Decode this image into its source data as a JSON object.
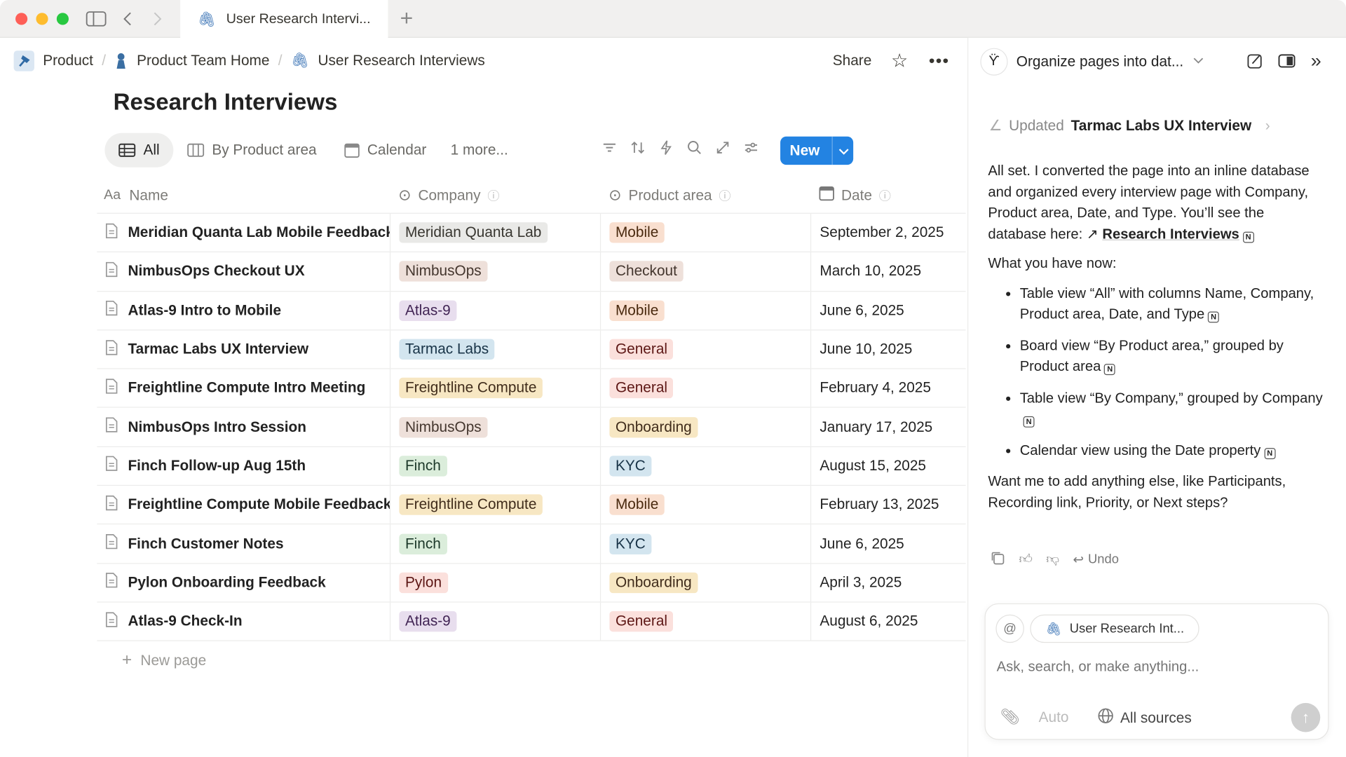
{
  "browser": {
    "tab_title": "User Research Intervi...",
    "new_tab": "+"
  },
  "breadcrumb": [
    {
      "label": "Product",
      "icon": "hammer-icon"
    },
    {
      "label": "Product Team Home",
      "icon": "person-icon"
    },
    {
      "label": "User Research Interviews",
      "icon": "paperclip-icon"
    }
  ],
  "topbar": {
    "share": "Share"
  },
  "page": {
    "title": "Research Interviews"
  },
  "views": [
    {
      "label": "All",
      "icon": "table-icon",
      "active": true
    },
    {
      "label": "By Product area",
      "icon": "board-icon"
    },
    {
      "label": "Calendar",
      "icon": "calendar-icon"
    },
    {
      "label": "1 more..."
    }
  ],
  "toolbar": {
    "new_label": "New"
  },
  "table": {
    "columns": [
      {
        "label": "Name",
        "icon": "text-icon"
      },
      {
        "label": "Company",
        "icon": "select-icon"
      },
      {
        "label": "Product area",
        "icon": "select-icon"
      },
      {
        "label": "Date",
        "icon": "calendar-icon"
      }
    ],
    "rows": [
      {
        "name": "Meridian Quanta Lab Mobile Feedback",
        "company": "Meridian Quanta Lab",
        "company_color": "gray",
        "area": "Mobile",
        "area_color": "orange",
        "date": "September 2, 2025"
      },
      {
        "name": "NimbusOps Checkout UX",
        "company": "NimbusOps",
        "company_color": "brown",
        "area": "Checkout",
        "area_color": "brown",
        "date": "March 10, 2025"
      },
      {
        "name": "Atlas-9 Intro to Mobile",
        "company": "Atlas-9",
        "company_color": "purple",
        "area": "Mobile",
        "area_color": "orange",
        "date": "June 6, 2025"
      },
      {
        "name": "Tarmac Labs UX Interview",
        "company": "Tarmac Labs",
        "company_color": "blue",
        "area": "General",
        "area_color": "red",
        "date": "June 10, 2025"
      },
      {
        "name": "Freightline Compute Intro Meeting",
        "company": "Freightline Compute",
        "company_color": "yellow",
        "area": "General",
        "area_color": "red",
        "date": "February 4, 2025"
      },
      {
        "name": "NimbusOps Intro Session",
        "company": "NimbusOps",
        "company_color": "brown",
        "area": "Onboarding",
        "area_color": "yellow",
        "date": "January 17, 2025"
      },
      {
        "name": "Finch Follow-up Aug 15th",
        "company": "Finch",
        "company_color": "green",
        "area": "KYC",
        "area_color": "blue",
        "date": "August 15, 2025"
      },
      {
        "name": "Freightline Compute Mobile Feedback",
        "company": "Freightline Compute",
        "company_color": "yellow",
        "area": "Mobile",
        "area_color": "orange",
        "date": "February 13, 2025"
      },
      {
        "name": "Finch Customer Notes",
        "company": "Finch",
        "company_color": "green",
        "area": "KYC",
        "area_color": "blue",
        "date": "June 6, 2025"
      },
      {
        "name": "Pylon Onboarding Feedback",
        "company": "Pylon",
        "company_color": "red",
        "area": "Onboarding",
        "area_color": "yellow",
        "date": "April 3, 2025"
      },
      {
        "name": "Atlas-9 Check-In",
        "company": "Atlas-9",
        "company_color": "purple",
        "area": "General",
        "area_color": "red",
        "date": "August 6, 2025"
      }
    ],
    "new_page": "New page"
  },
  "tag_colors": {
    "gray": {
      "bg": "#e9e9e7",
      "fg": "#37352f"
    },
    "brown": {
      "bg": "#eee0da",
      "fg": "#44362e"
    },
    "purple": {
      "bg": "#e8deee",
      "fg": "#412454"
    },
    "blue": {
      "bg": "#d3e5ef",
      "fg": "#183347"
    },
    "yellow": {
      "bg": "#f7e7c3",
      "fg": "#402c1b"
    },
    "orange": {
      "bg": "#f9dfcf",
      "fg": "#49290e"
    },
    "red": {
      "bg": "#fbe0dc",
      "fg": "#5d1715"
    },
    "green": {
      "bg": "#dbeddb",
      "fg": "#1c3829"
    }
  },
  "accent": "#2383e2",
  "chat": {
    "title": "Organize pages into dat...",
    "updated_label": "Updated",
    "updated_page": "Tarmac Labs UX Interview",
    "intro": "All set. I converted the page into an inline database and organized every interview page with Company, Product area, Date, and Type. You’ll see the database here:",
    "intro_link": "Research Interviews",
    "have_now": "What you have now:",
    "bullets": [
      "Table view “All” with columns Name, Company, Product area, Date, and Type",
      "Board view “By Product area,” grouped by Product area",
      "Table view “By Company,” grouped by Company",
      "Calendar view using the Date property"
    ],
    "question": "Want me to add anything else, like Participants, Recording link, Priority, or Next steps?",
    "undo": "Undo",
    "context_pill": "User Research Int...",
    "placeholder": "Ask, search, or make anything...",
    "mode": "Auto",
    "sources": "All sources"
  }
}
